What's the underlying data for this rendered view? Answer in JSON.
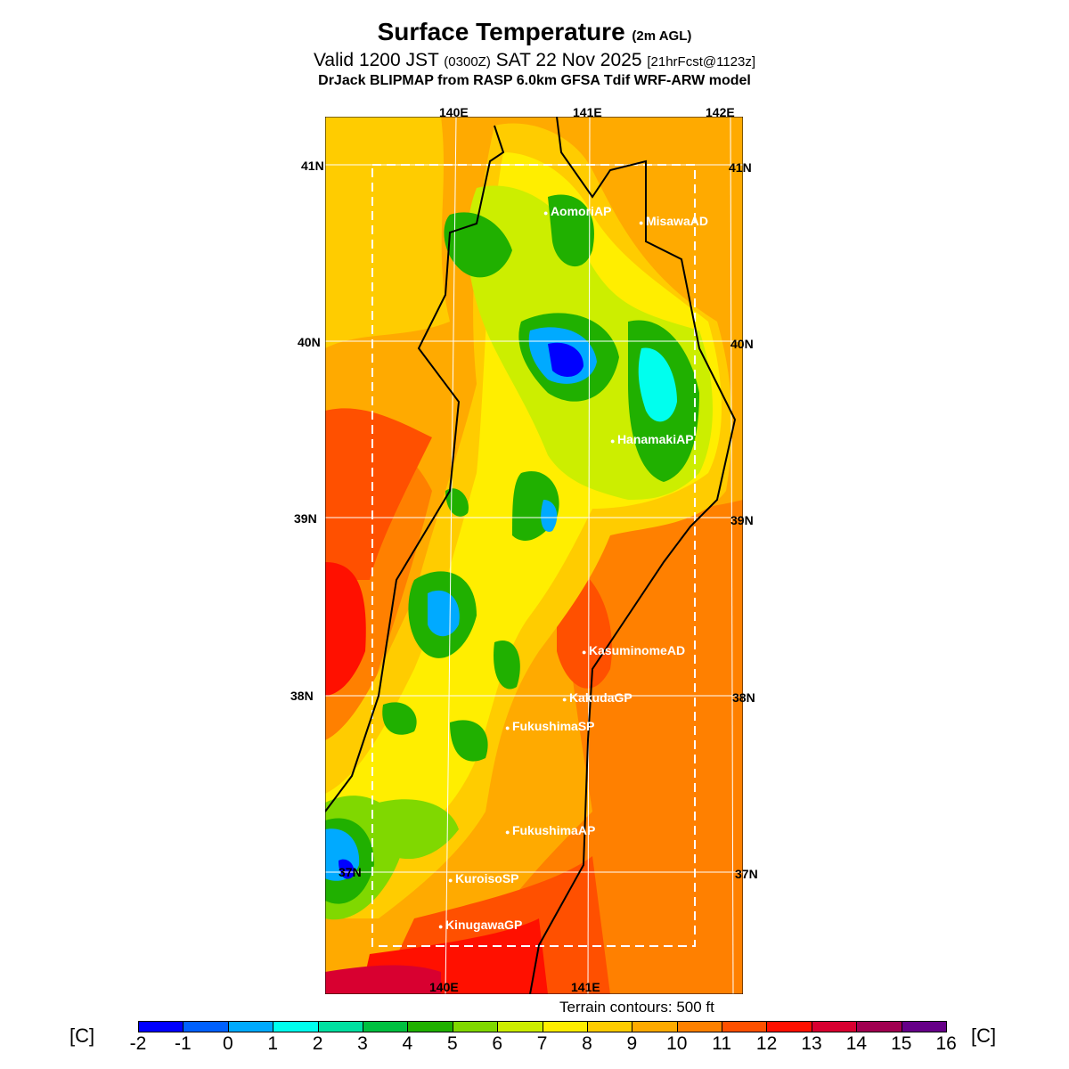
{
  "title": {
    "main": "Surface Temperature",
    "main_sub": "(2m AGL)",
    "valid": "Valid 1200 JST",
    "valid_z": "(0300Z)",
    "date": "SAT 22 Nov 2025",
    "fcst": "[21hrFcst@1123z]",
    "model": "DrJack BLIPMAP from RASP 6.0km GFSA Tdif WRF-ARW model"
  },
  "axes": {
    "lon_top": [
      "140E",
      "141E",
      "142E"
    ],
    "lon_bottom": [
      "140E",
      "141E"
    ],
    "lat_left": [
      "41N",
      "40N",
      "39N",
      "38N",
      "37N"
    ],
    "lat_right": [
      "41N",
      "40N",
      "39N",
      "38N",
      "37N"
    ]
  },
  "stations": [
    "AomoriAP",
    "MisawaAD",
    "HanamakiAP",
    "KasuminomeAD",
    "KakudaGP",
    "FukushimaSP",
    "FukushimaAP",
    "KuroisoSP",
    "KinugawaGP"
  ],
  "terrain_note": "Terrain contours: 500 ft",
  "colorbar": {
    "unit": "[C]",
    "ticks": [
      "-2",
      "-1",
      "0",
      "1",
      "2",
      "3",
      "4",
      "5",
      "6",
      "7",
      "8",
      "9",
      "10",
      "11",
      "12",
      "13",
      "14",
      "15",
      "16"
    ],
    "colors": [
      "#0000ff",
      "#0060ff",
      "#00aaff",
      "#00ffee",
      "#00e0a0",
      "#00c040",
      "#20b000",
      "#80d800",
      "#ccee00",
      "#ffee00",
      "#ffcc00",
      "#ffaa00",
      "#ff8000",
      "#ff5000",
      "#ff1000",
      "#d80030",
      "#a00050",
      "#660088"
    ]
  }
}
